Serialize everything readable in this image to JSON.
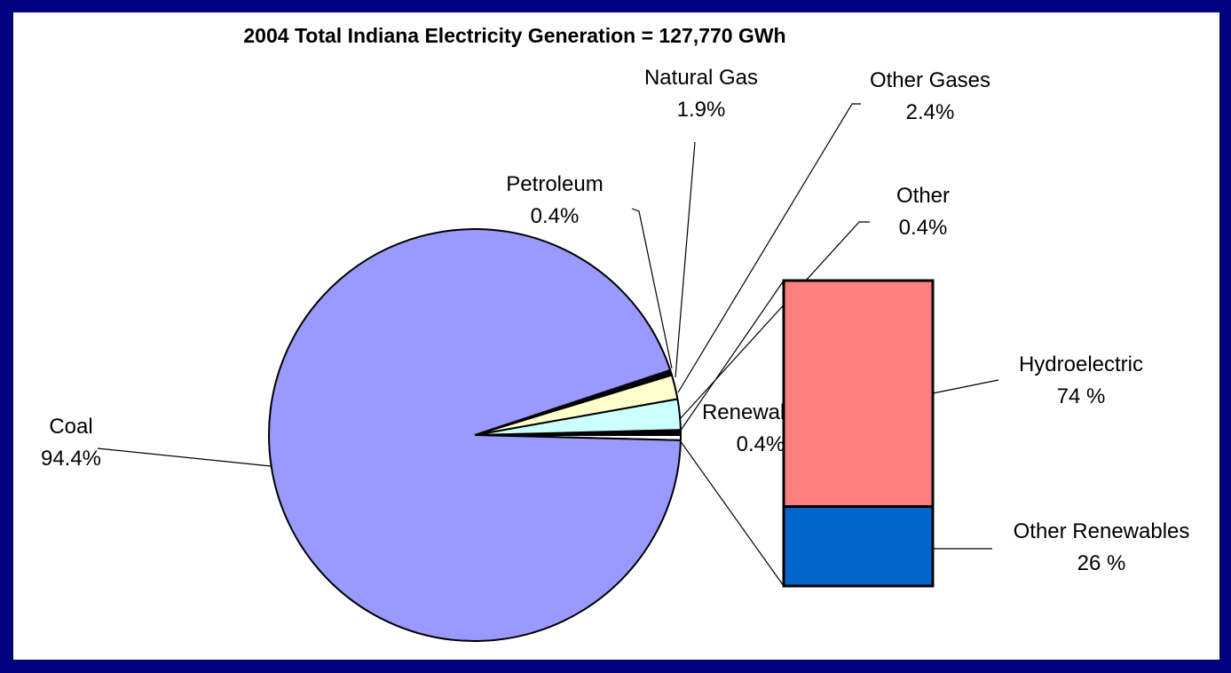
{
  "chart_data": {
    "type": "pie",
    "title": "2004 Total Indiana Electricity Generation = 127,770 GWh",
    "categories": [
      "Renewables",
      "Other",
      "Other Gases",
      "Natural Gas",
      "Petroleum",
      "Coal"
    ],
    "values": [
      0.4,
      0.4,
      2.4,
      1.9,
      0.4,
      94.4
    ],
    "value_labels": [
      "0.4%",
      "0.4%",
      "2.4%",
      "1.9%",
      "0.4%",
      "94.4%"
    ],
    "colors": [
      "#ffffff",
      "#000000",
      "#ccffff",
      "#ffffcc",
      "#000000",
      "#9999ff"
    ],
    "breakdown": {
      "type": "bar",
      "categories": [
        "Hydroelectric",
        "Other Renewables"
      ],
      "values": [
        74,
        26
      ],
      "value_labels": [
        "74 %",
        "26 %"
      ],
      "colors": [
        "#ff8080",
        "#0066cc"
      ]
    }
  }
}
